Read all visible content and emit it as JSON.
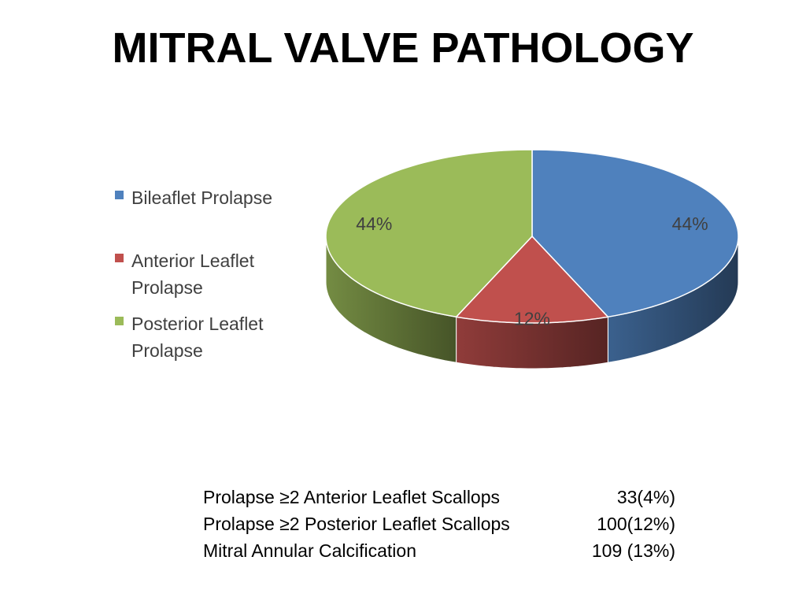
{
  "title": "MITRAL VALVE PATHOLOGY",
  "chart_data": {
    "type": "pie",
    "categories": [
      "Bileaflet Prolapse",
      "Anterior Leaflet Prolapse",
      "Posterior Leaflet Prolapse"
    ],
    "values": [
      44,
      12,
      44
    ],
    "data_labels": [
      "44%",
      "12%",
      "44%"
    ],
    "colors": [
      "#4F81BD",
      "#C0504D",
      "#9BBB59"
    ],
    "legend": {
      "placement": "left",
      "entries": [
        {
          "label": "Bileaflet Prolapse",
          "color": "#4F81BD"
        },
        {
          "label": "Anterior Leaflet Prolapse",
          "color": "#C0504D"
        },
        {
          "label": "Posterior Leaflet Prolapse",
          "color": "#9BBB59"
        }
      ]
    },
    "style": "3d"
  },
  "stats": [
    {
      "label": "Prolapse ≥2 Anterior Leaflet Scallops",
      "value": "33(4%)"
    },
    {
      "label": "Prolapse ≥2 Posterior Leaflet Scallops",
      "value": "100(12%)"
    },
    {
      "label": "Mitral Annular Calcification",
      "value": "109 (13%)"
    }
  ]
}
